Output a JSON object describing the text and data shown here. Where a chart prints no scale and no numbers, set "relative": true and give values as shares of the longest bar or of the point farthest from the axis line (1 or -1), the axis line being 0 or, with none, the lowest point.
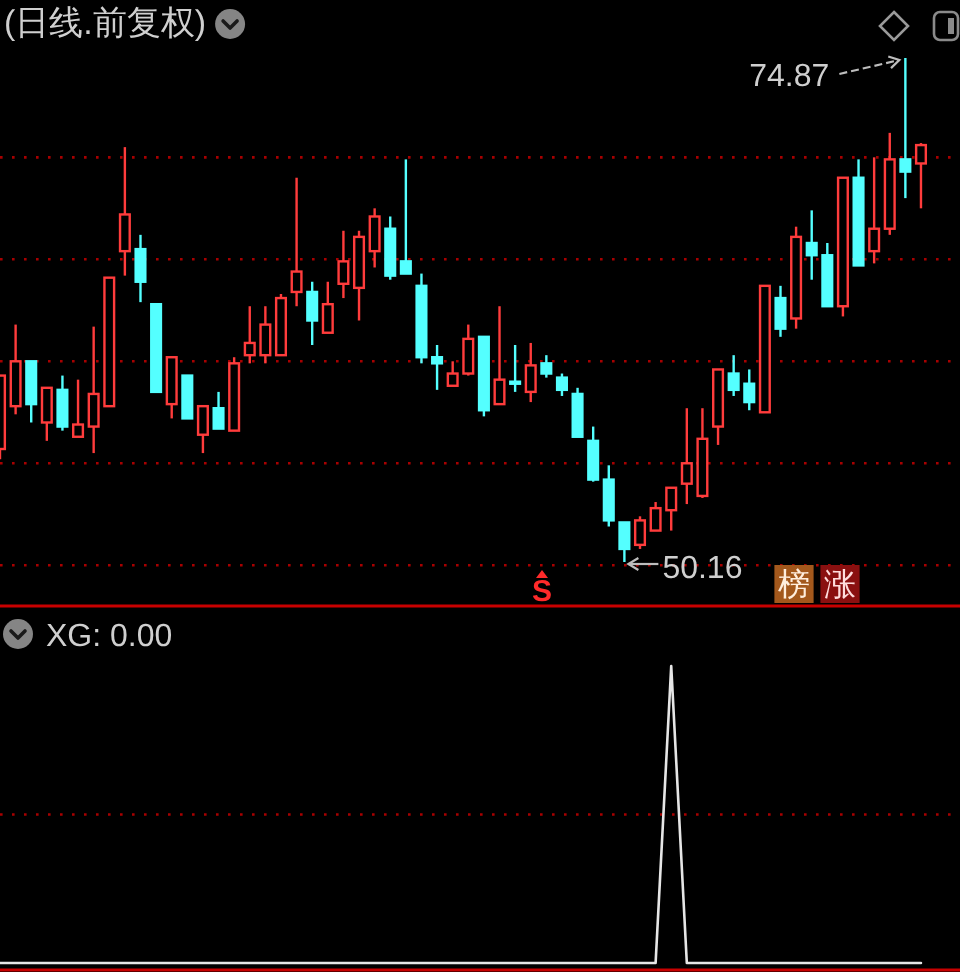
{
  "chart_data": [
    {
      "type": "candlestick",
      "title": "(日线.前复权)",
      "categories": [
        null,
        null,
        null,
        null,
        null,
        null,
        null,
        null,
        null,
        null,
        null,
        null,
        null,
        null,
        null,
        null,
        null,
        null,
        null,
        null,
        null,
        null,
        null,
        null,
        null,
        null,
        null,
        null,
        null,
        null,
        null,
        null,
        null,
        null,
        null,
        null,
        null,
        null,
        null,
        null,
        null,
        null,
        null,
        null,
        null,
        null,
        null,
        null,
        null,
        null,
        null,
        null,
        null,
        null,
        null,
        null,
        null,
        null,
        null,
        null
      ],
      "ohlc": [
        [
          55.7,
          59.3,
          55.2,
          59.3
        ],
        [
          57.8,
          61.8,
          57.4,
          60.0
        ],
        [
          60.0,
          60.0,
          57.0,
          57.9
        ],
        [
          57.0,
          58.7,
          56.1,
          58.7
        ],
        [
          58.6,
          59.3,
          56.6,
          56.8
        ],
        [
          56.3,
          59.1,
          56.3,
          56.9
        ],
        [
          56.8,
          61.7,
          55.5,
          58.4
        ],
        [
          57.8,
          64.1,
          57.8,
          64.1
        ],
        [
          65.4,
          70.5,
          64.2,
          67.2
        ],
        [
          65.5,
          66.2,
          62.9,
          63.9
        ],
        [
          62.8,
          62.8,
          58.5,
          58.5
        ],
        [
          57.9,
          60.2,
          57.2,
          60.2
        ],
        [
          59.3,
          59.3,
          57.2,
          57.2
        ],
        [
          56.4,
          57.8,
          55.5,
          57.8
        ],
        [
          57.7,
          58.5,
          56.7,
          56.7
        ],
        [
          56.6,
          60.2,
          56.6,
          59.9
        ],
        [
          60.3,
          62.7,
          59.9,
          60.9
        ],
        [
          60.3,
          62.7,
          59.9,
          61.8
        ],
        [
          60.3,
          63.3,
          60.3,
          63.1
        ],
        [
          63.4,
          69.0,
          62.7,
          64.4
        ],
        [
          63.4,
          63.9,
          60.8,
          62.0
        ],
        [
          61.4,
          63.9,
          61.4,
          62.8
        ],
        [
          63.8,
          66.4,
          63.1,
          64.9
        ],
        [
          63.6,
          66.4,
          62.0,
          66.1
        ],
        [
          65.4,
          67.5,
          64.6,
          67.1
        ],
        [
          66.5,
          67.1,
          64.0,
          64.2
        ],
        [
          64.9,
          69.9,
          64.3,
          64.3
        ],
        [
          63.7,
          64.3,
          59.9,
          60.2
        ],
        [
          60.2,
          60.8,
          58.6,
          59.9
        ],
        [
          58.8,
          60.0,
          58.8,
          59.4
        ],
        [
          59.4,
          61.8,
          59.3,
          61.1
        ],
        [
          61.2,
          61.2,
          57.3,
          57.6
        ],
        [
          57.9,
          62.7,
          57.9,
          59.1
        ],
        [
          59.0,
          60.8,
          58.5,
          58.9
        ],
        [
          58.5,
          60.9,
          58.0,
          59.8
        ],
        [
          59.9,
          60.3,
          59.2,
          59.4
        ],
        [
          59.2,
          59.4,
          58.3,
          58.6
        ],
        [
          58.4,
          58.7,
          56.3,
          56.3
        ],
        [
          56.1,
          56.8,
          54.1,
          54.2
        ],
        [
          54.2,
          54.9,
          51.9,
          52.2
        ],
        [
          52.1,
          52.1,
          50.16,
          50.8
        ],
        [
          51.0,
          52.4,
          50.8,
          52.2
        ],
        [
          51.7,
          53.1,
          51.7,
          52.8
        ],
        [
          52.7,
          53.8,
          51.7,
          53.8
        ],
        [
          54.0,
          57.7,
          53.0,
          55.0
        ],
        [
          53.4,
          57.7,
          53.3,
          56.2
        ],
        [
          56.8,
          59.6,
          55.9,
          59.6
        ],
        [
          59.4,
          60.3,
          58.3,
          58.6
        ],
        [
          58.9,
          59.6,
          57.6,
          58.0
        ],
        [
          57.5,
          63.7,
          57.5,
          63.7
        ],
        [
          63.1,
          63.7,
          61.2,
          61.6
        ],
        [
          62.1,
          66.6,
          61.6,
          66.1
        ],
        [
          65.8,
          67.4,
          64.0,
          65.2
        ],
        [
          65.2,
          65.8,
          62.7,
          62.7
        ],
        [
          62.7,
          69.0,
          62.2,
          69.0
        ],
        [
          69.0,
          69.9,
          64.7,
          64.7
        ],
        [
          65.4,
          70.0,
          64.8,
          66.5
        ],
        [
          66.5,
          71.2,
          66.2,
          69.9
        ],
        [
          69.9,
          74.87,
          68.0,
          69.3
        ],
        [
          69.7,
          70.7,
          67.5,
          70.6
        ]
      ],
      "colors": [
        "#ff3c3c",
        "#ff3c3c",
        "#54ffff",
        "#ff3c3c",
        "#54ffff",
        "#ff3c3c",
        "#ff3c3c",
        "#ff3c3c",
        "#ff3c3c",
        "#54ffff",
        "#54ffff",
        "#ff3c3c",
        "#54ffff",
        "#ff3c3c",
        "#54ffff",
        "#ff3c3c",
        "#ff3c3c",
        "#ff3c3c",
        "#ff3c3c",
        "#ff3c3c",
        "#54ffff",
        "#ff3c3c",
        "#ff3c3c",
        "#ff3c3c",
        "#ff3c3c",
        "#54ffff",
        "#54ffff",
        "#54ffff",
        "#54ffff",
        "#ff3c3c",
        "#ff3c3c",
        "#54ffff",
        "#ff3c3c",
        "#54ffff",
        "#ff3c3c",
        "#54ffff",
        "#54ffff",
        "#54ffff",
        "#54ffff",
        "#54ffff",
        "#54ffff",
        "#ff3c3c",
        "#ff3c3c",
        "#ff3c3c",
        "#ff3c3c",
        "#ff3c3c",
        "#ff3c3c",
        "#54ffff",
        "#54ffff",
        "#ff3c3c",
        "#54ffff",
        "#ff3c3c",
        "#54ffff",
        "#54ffff",
        "#ff3c3c",
        "#54ffff",
        "#ff3c3c",
        "#ff3c3c",
        "#54ffff",
        "#ff3c3c"
      ],
      "yticks": [
        {
          "value": 50,
          "label": null
        },
        {
          "value": 55,
          "label": null
        },
        {
          "value": 60,
          "label": null
        },
        {
          "value": 65,
          "label": null
        },
        {
          "value": 70,
          "label": null
        }
      ],
      "grid": "y",
      "annotations": [
        "74.87",
        "50.16",
        "S",
        "榜",
        "涨"
      ]
    },
    {
      "type": "line",
      "title": "XG: 0.00",
      "relative": true,
      "categories": [
        null,
        null,
        null,
        null,
        null,
        null,
        null,
        null,
        null,
        null,
        null,
        null,
        null,
        null,
        null,
        null,
        null,
        null,
        null,
        null,
        null,
        null,
        null,
        null,
        null,
        null,
        null,
        null,
        null,
        null,
        null,
        null,
        null,
        null,
        null,
        null,
        null,
        null,
        null,
        null,
        null,
        null,
        null,
        null,
        null,
        null,
        null,
        null,
        null,
        null,
        null,
        null,
        null,
        null,
        null,
        null,
        null,
        null,
        null,
        null
      ],
      "series": [
        {
          "color": "#e6e6e6",
          "values": [
            0,
            0,
            0,
            0,
            0,
            0,
            0,
            0,
            0,
            0,
            0,
            0,
            0,
            0,
            0,
            0,
            0,
            0,
            0,
            0,
            0,
            0,
            0,
            0,
            0,
            0,
            0,
            0,
            0,
            0,
            0,
            0,
            0,
            0,
            0,
            0,
            0,
            0,
            0,
            0,
            0,
            0,
            0,
            1,
            0,
            0,
            0,
            0,
            0,
            0,
            0,
            0,
            0,
            0,
            0,
            0,
            0,
            0,
            0,
            0
          ]
        }
      ],
      "ref_lines": [
        {
          "axis": "y",
          "value": 0.5,
          "color": "#a80000",
          "line_style": "dotted"
        }
      ]
    }
  ]
}
